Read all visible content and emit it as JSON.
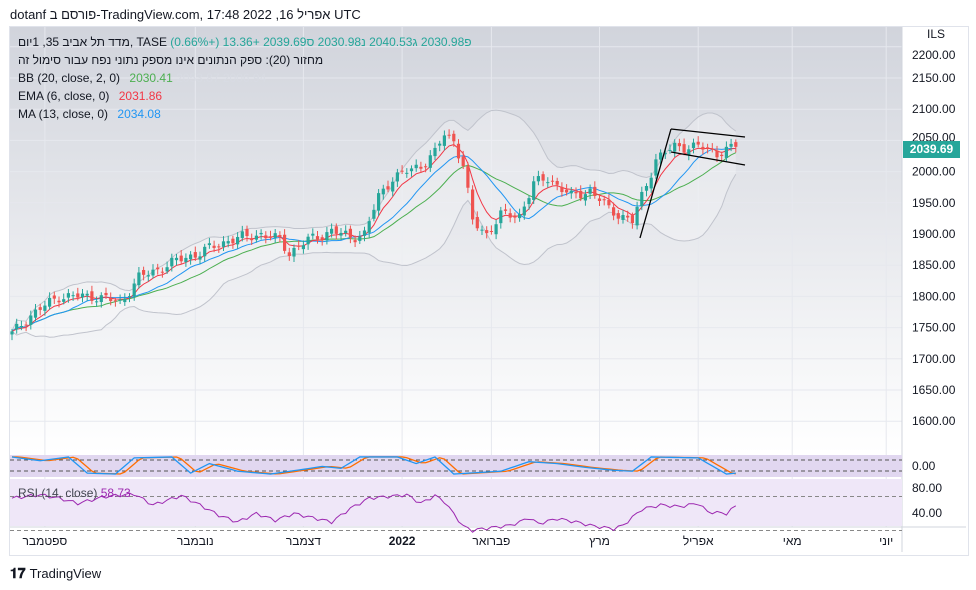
{
  "header": {
    "title": "dotanf פורסם ב-TradingView.com, 17:48 2022 ,16 אפריל UTC"
  },
  "legend": {
    "symbol": "מדד תל אביב 35, 1יום, TASE",
    "open": "פ2030.98",
    "high": "ג2040.53",
    "low": "נ2030.98",
    "close": "ס2039.69",
    "change": "+13.36 (+0.66%)",
    "volume_note": "מחזור (20): ספק הנתונים אינו מספק נתוני נפח עבור סימול זה",
    "bb_label": "BB (20, close, 2, 0)",
    "bb_value": "2030.41",
    "bb_upper": "2053.87",
    "bb_lower": "2006.94",
    "ema_label": "EMA (6, close, 0)",
    "ema_value": "2031.86",
    "ma_label": "MA (13, close, 0)",
    "ma_value": "2034.08",
    "rsi_label": "RSI (14, close)",
    "rsi_value": "58.73"
  },
  "price_axis": {
    "currency": "ILS",
    "last_price": "2039.69"
  },
  "footer": {
    "brand": "TradingView"
  },
  "colors": {
    "up": "#26a69a",
    "down": "#ef5350",
    "bb": "#4caf50",
    "ema": "#f23645",
    "ma": "#2196f3",
    "rsi": "#9c27b0",
    "stoch_k": "#2196f3",
    "stoch_d": "#ff6d00"
  },
  "chart_data": {
    "type": "candlestick",
    "title": "TA-35 Index, 1D, TASE",
    "ylim": [
      1550,
      2230
    ],
    "yticks": [
      2200,
      2150,
      2100,
      2050,
      2000,
      1950,
      1900,
      1850,
      1800,
      1750,
      1700,
      1650,
      1600
    ],
    "ytick_labels": [
      "2200.00",
      "2150.00",
      "2100.00",
      "2050.00",
      "2000.00",
      "1950.00",
      "1900.00",
      "1850.00",
      "1800.00",
      "1750.00",
      "1700.00",
      "1650.00",
      "1600.00"
    ],
    "xtick_labels": [
      "ספטמבר",
      "נובמבר",
      "דצמבר",
      "2022",
      "פברואר",
      "מרץ",
      "אפריל",
      "מאי",
      "יוני"
    ],
    "xtick_index": [
      7,
      39,
      62,
      83,
      102,
      125,
      146,
      166,
      186
    ],
    "close_path": [
      [
        0,
        1740
      ],
      [
        4,
        1770
      ],
      [
        10,
        1800
      ],
      [
        18,
        1800
      ],
      [
        23,
        1790
      ],
      [
        27,
        1830
      ],
      [
        36,
        1860
      ],
      [
        40,
        1870
      ],
      [
        46,
        1890
      ],
      [
        53,
        1900
      ],
      [
        57,
        1890
      ],
      [
        59,
        1870
      ],
      [
        63,
        1890
      ],
      [
        68,
        1905
      ],
      [
        72,
        1895
      ],
      [
        75,
        1900
      ],
      [
        78,
        1960
      ],
      [
        81,
        1990
      ],
      [
        87,
        2010
      ],
      [
        90,
        2030
      ],
      [
        92,
        2060
      ],
      [
        94,
        2050
      ],
      [
        96,
        2010
      ],
      [
        98,
        1920
      ],
      [
        101,
        1900
      ],
      [
        104,
        1930
      ],
      [
        108,
        1930
      ],
      [
        111,
        1980
      ],
      [
        114,
        1990
      ],
      [
        119,
        1960
      ],
      [
        123,
        1970
      ],
      [
        127,
        1940
      ],
      [
        132,
        1920
      ],
      [
        134,
        1960
      ],
      [
        137,
        2020
      ],
      [
        141,
        2040
      ],
      [
        146,
        2040
      ],
      [
        150,
        2030
      ],
      [
        154,
        2039.69
      ]
    ],
    "stoch_ylabel": "0.00",
    "stoch_path": [
      [
        0,
        95
      ],
      [
        6,
        75
      ],
      [
        12,
        95
      ],
      [
        16,
        10
      ],
      [
        22,
        5
      ],
      [
        26,
        90
      ],
      [
        34,
        95
      ],
      [
        38,
        10
      ],
      [
        42,
        60
      ],
      [
        48,
        20
      ],
      [
        55,
        5
      ],
      [
        62,
        30
      ],
      [
        66,
        45
      ],
      [
        70,
        35
      ],
      [
        74,
        95
      ],
      [
        82,
        95
      ],
      [
        86,
        60
      ],
      [
        90,
        95
      ],
      [
        94,
        5
      ],
      [
        104,
        20
      ],
      [
        110,
        70
      ],
      [
        116,
        60
      ],
      [
        122,
        40
      ],
      [
        128,
        25
      ],
      [
        132,
        20
      ],
      [
        136,
        95
      ],
      [
        146,
        90
      ],
      [
        152,
        5
      ],
      [
        154,
        10
      ]
    ],
    "rsi_ylim": [
      20,
      90
    ],
    "rsi_ticks": [
      "80.00",
      "40.00"
    ],
    "rsi_path": [
      [
        0,
        68
      ],
      [
        6,
        72
      ],
      [
        10,
        68
      ],
      [
        14,
        62
      ],
      [
        20,
        70
      ],
      [
        26,
        73
      ],
      [
        30,
        60
      ],
      [
        36,
        71
      ],
      [
        40,
        60
      ],
      [
        44,
        48
      ],
      [
        48,
        40
      ],
      [
        52,
        50
      ],
      [
        56,
        42
      ],
      [
        60,
        50
      ],
      [
        64,
        45
      ],
      [
        68,
        40
      ],
      [
        72,
        56
      ],
      [
        76,
        68
      ],
      [
        80,
        70
      ],
      [
        84,
        72
      ],
      [
        87,
        62
      ],
      [
        90,
        71
      ],
      [
        92,
        64
      ],
      [
        96,
        35
      ],
      [
        98,
        30
      ],
      [
        100,
        32
      ],
      [
        106,
        36
      ],
      [
        108,
        40
      ],
      [
        110,
        45
      ],
      [
        112,
        38
      ],
      [
        116,
        44
      ],
      [
        120,
        40
      ],
      [
        124,
        35
      ],
      [
        128,
        32
      ],
      [
        130,
        36
      ],
      [
        134,
        55
      ],
      [
        138,
        60
      ],
      [
        142,
        58
      ],
      [
        146,
        62
      ],
      [
        148,
        52
      ],
      [
        152,
        50
      ],
      [
        154,
        58.73
      ]
    ]
  }
}
